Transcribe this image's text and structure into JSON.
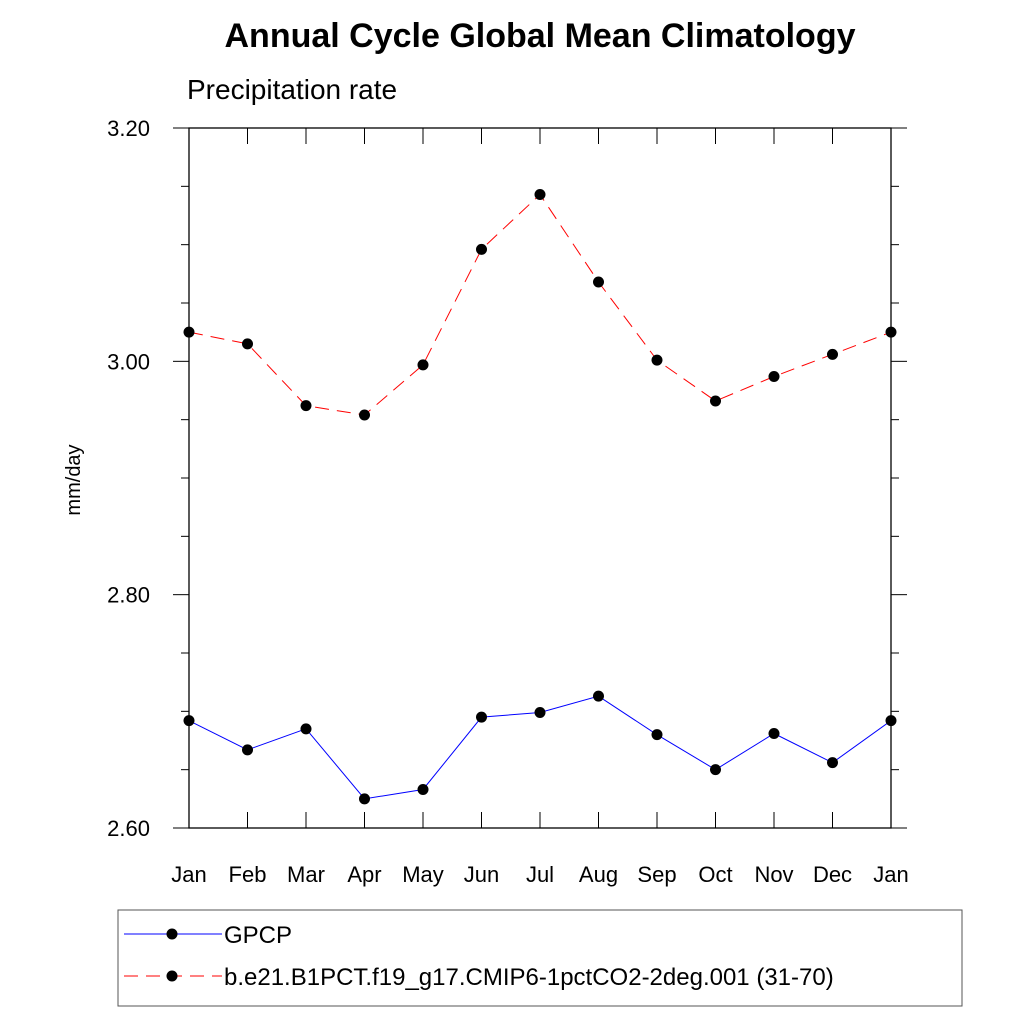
{
  "chart_data": {
    "type": "line",
    "title": "Annual Cycle Global Mean Climatology",
    "subtitle": "Precipitation rate",
    "xlabel": "",
    "ylabel": "mm/day",
    "categories": [
      "Jan",
      "Feb",
      "Mar",
      "Apr",
      "May",
      "Jun",
      "Jul",
      "Aug",
      "Sep",
      "Oct",
      "Nov",
      "Dec",
      "Jan"
    ],
    "ylim": [
      2.6,
      3.2
    ],
    "yticks": [
      2.6,
      2.8,
      3.0,
      3.2
    ],
    "ytick_labels": [
      "2.60",
      "2.80",
      "3.00",
      "3.20"
    ],
    "yminor_step": 0.05,
    "grid": false,
    "legend_position": "bottom",
    "series": [
      {
        "name": "GPCP",
        "color": "#0000ff",
        "line_style": "solid",
        "marker": "filled-circle",
        "values": [
          2.692,
          2.667,
          2.685,
          2.625,
          2.633,
          2.695,
          2.699,
          2.713,
          2.68,
          2.65,
          2.681,
          2.656,
          2.692
        ]
      },
      {
        "name": "b.e21.B1PCT.f19_g17.CMIP6-1pctCO2-2deg.001 (31-70)",
        "color": "#ff0000",
        "line_style": "dashed",
        "marker": "filled-circle",
        "values": [
          3.025,
          3.015,
          2.962,
          2.954,
          2.997,
          3.096,
          3.143,
          3.068,
          3.001,
          2.966,
          2.987,
          3.006,
          3.025
        ]
      }
    ]
  }
}
